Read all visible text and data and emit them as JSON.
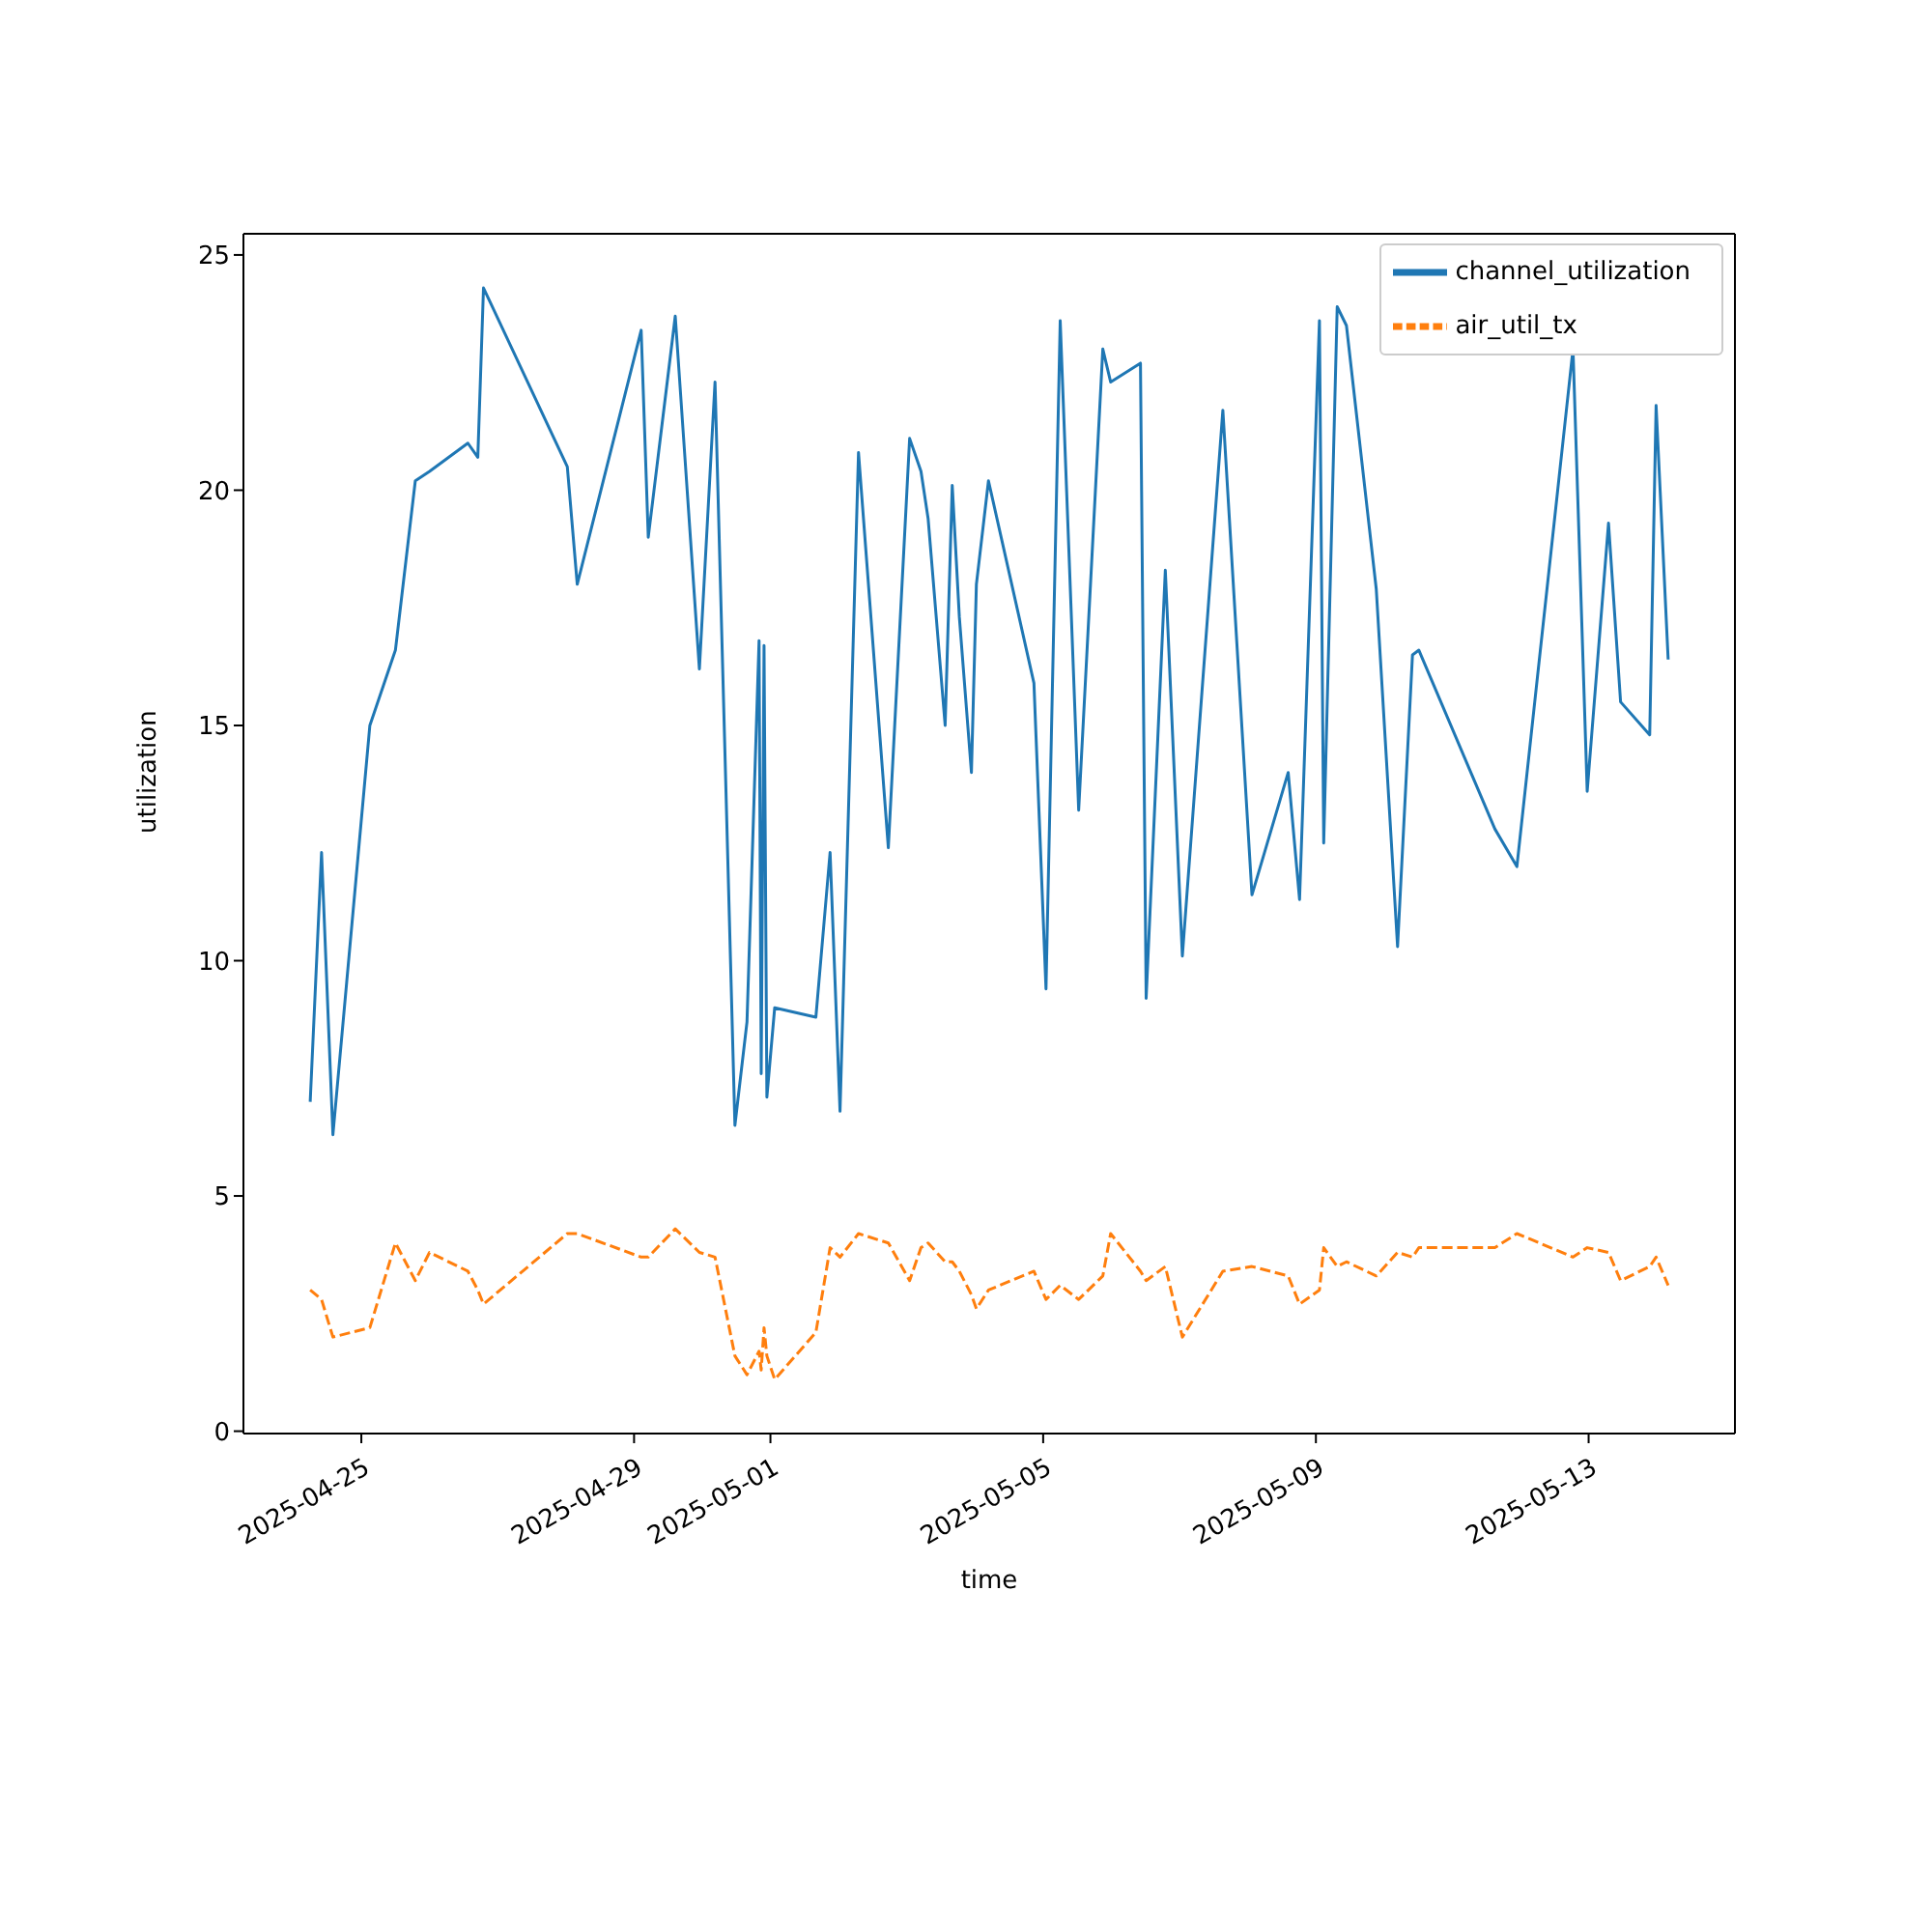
{
  "chart_data": {
    "type": "line",
    "xlabel": "time",
    "ylabel": "utilization",
    "x": [
      "2025-04-24T06:00",
      "2025-04-24T10:00",
      "2025-04-24T14:00",
      "2025-04-25T03:00",
      "2025-04-25T12:00",
      "2025-04-25T19:00",
      "2025-04-26T00:00",
      "2025-04-26T13:30",
      "2025-04-26T17:00",
      "2025-04-26T19:00",
      "2025-04-28T00:30",
      "2025-04-28T04:00",
      "2025-04-29T02:30",
      "2025-04-29T05:00",
      "2025-04-29T14:30",
      "2025-04-29T23:00",
      "2025-04-30T04:30",
      "2025-04-30T11:30",
      "2025-04-30T15:45",
      "2025-04-30T20:00",
      "2025-04-30T20:45",
      "2025-04-30T21:45",
      "2025-04-30T22:45",
      "2025-05-01T01:30",
      "2025-05-01T16:00",
      "2025-05-01T21:00",
      "2025-05-02T00:30",
      "2025-05-02T07:00",
      "2025-05-02T17:30",
      "2025-05-03T01:00",
      "2025-05-03T05:00",
      "2025-05-03T07:30",
      "2025-05-03T13:30",
      "2025-05-03T16:00",
      "2025-05-03T18:30",
      "2025-05-03T22:45",
      "2025-05-04T00:30",
      "2025-05-04T04:45",
      "2025-05-04T20:45",
      "2025-05-05T01:00",
      "2025-05-05T06:00",
      "2025-05-05T12:30",
      "2025-05-05T21:00",
      "2025-05-05T23:45",
      "2025-05-06T10:15",
      "2025-05-06T12:15",
      "2025-05-06T19:00",
      "2025-05-07T01:00",
      "2025-05-07T15:15",
      "2025-05-08T01:30",
      "2025-05-08T14:15",
      "2025-05-08T18:15",
      "2025-05-09T01:15",
      "2025-05-09T02:45",
      "2025-05-09T07:30",
      "2025-05-09T10:45",
      "2025-05-09T21:15",
      "2025-05-10T04:45",
      "2025-05-10T10:00",
      "2025-05-10T12:15",
      "2025-05-11T15:00",
      "2025-05-11T22:45",
      "2025-05-12T18:30",
      "2025-05-12T23:30",
      "2025-05-13T07:00",
      "2025-05-13T11:15",
      "2025-05-13T21:30",
      "2025-05-13T23:45",
      "2025-05-14T04:00"
    ],
    "series": [
      {
        "name": "channel_utilization",
        "color": "#1f77b4",
        "line_style": "solid",
        "values": [
          7.0,
          12.3,
          6.3,
          15.0,
          16.6,
          20.2,
          20.4,
          21.0,
          20.7,
          24.3,
          20.5,
          18.0,
          23.4,
          19.0,
          23.7,
          16.2,
          22.3,
          6.5,
          8.7,
          16.8,
          7.6,
          16.7,
          7.1,
          9.0,
          8.8,
          12.3,
          6.8,
          20.8,
          12.4,
          21.1,
          20.4,
          19.4,
          15.0,
          20.1,
          17.3,
          14.0,
          18.0,
          20.2,
          15.9,
          9.4,
          23.6,
          13.2,
          23.0,
          22.3,
          22.7,
          9.2,
          18.3,
          10.1,
          21.7,
          11.4,
          14.0,
          11.3,
          23.6,
          12.5,
          23.9,
          23.5,
          17.9,
          10.3,
          16.5,
          16.6,
          12.8,
          12.0,
          23.0,
          13.6,
          19.3,
          15.5,
          14.8,
          21.8,
          16.4
        ]
      },
      {
        "name": "air_util_tx",
        "color": "#ff7f0e",
        "line_style": "dashed",
        "values": [
          3.0,
          2.8,
          2.0,
          2.2,
          4.0,
          3.2,
          3.8,
          3.4,
          3.0,
          2.7,
          4.2,
          4.2,
          3.7,
          3.7,
          4.3,
          3.8,
          3.7,
          1.6,
          1.2,
          1.7,
          1.3,
          2.2,
          1.6,
          1.1,
          2.1,
          3.9,
          3.7,
          4.2,
          4.0,
          3.2,
          3.9,
          4.0,
          3.6,
          3.6,
          3.4,
          2.9,
          2.6,
          3.0,
          3.4,
          2.8,
          3.1,
          2.8,
          3.3,
          4.2,
          3.4,
          3.2,
          3.5,
          2.0,
          3.4,
          3.5,
          3.3,
          2.7,
          3.0,
          3.9,
          3.5,
          3.6,
          3.3,
          3.8,
          3.7,
          3.9,
          3.9,
          4.2,
          3.7,
          3.9,
          3.8,
          3.2,
          3.5,
          3.7,
          3.1
        ]
      }
    ],
    "xlim": [
      "2025-04-23T06:30",
      "2025-05-15T03:30"
    ],
    "xticks": [
      "2025-04-25",
      "2025-04-29",
      "2025-05-01",
      "2025-05-05",
      "2025-05-09",
      "2025-05-13"
    ],
    "ylim": [
      -0.05,
      25.45
    ],
    "yticks": [
      0,
      5,
      10,
      15,
      20,
      25
    ],
    "marker": "none",
    "grid": false,
    "legend": "top right"
  }
}
